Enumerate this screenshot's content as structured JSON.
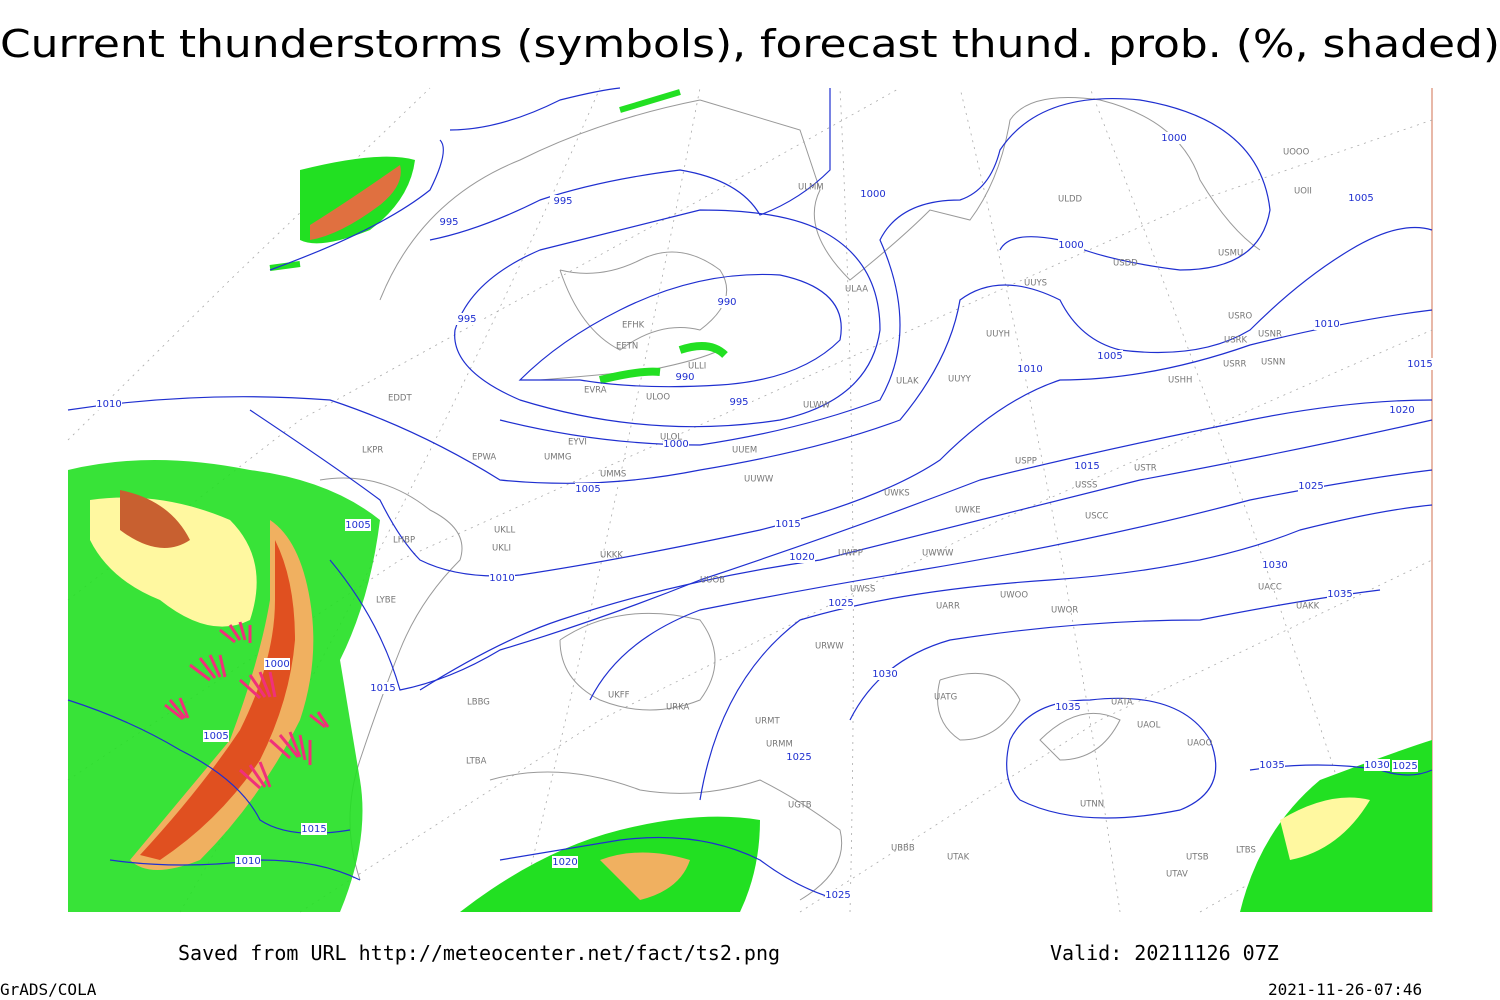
{
  "header": {
    "title": "Current thunderstorms (symbols), forecast thund. prob. (%, shaded)"
  },
  "footer": {
    "source": "Saved from URL http://meteocenter.net/fact/ts2.png",
    "valid": "Valid: 20211126 07Z",
    "software": "GrADS/COLA",
    "timestamp": "2021-11-26-07:46"
  },
  "isobar_labels": [
    "995",
    "995",
    "995",
    "990",
    "990",
    "995",
    "1000",
    "1000",
    "1000",
    "1005",
    "1000",
    "1005",
    "1005",
    "1010",
    "1010",
    "1015",
    "1020",
    "1010",
    "1005",
    "1010",
    "1015",
    "1015",
    "1020",
    "1025",
    "1025",
    "1030",
    "1035",
    "1030",
    "1035",
    "1000",
    "1015",
    "1005",
    "1015",
    "1010",
    "1020",
    "1025",
    "1025",
    "1035",
    "1030",
    "1025"
  ],
  "stations": [
    "ULMM",
    "ULDD",
    "USDD",
    "USMU",
    "UOOO",
    "UOII",
    "ULAA",
    "EFHK",
    "EETN",
    "ULLI",
    "EVRA",
    "ULOO",
    "ULWW",
    "ULAK",
    "UUYY",
    "UUYH",
    "UUYS",
    "USRO",
    "USRK",
    "USNR",
    "USRR",
    "USNN",
    "USHH",
    "EDDT",
    "ULOL",
    "EYVI",
    "UMMG",
    "UUEM",
    "LKPR",
    "EPWA",
    "UMMS",
    "UUWW",
    "USPP",
    "USTR",
    "USSS",
    "UWKS",
    "UWKE",
    "USCC",
    "UKLL",
    "UKLI",
    "LHBP",
    "LYBE",
    "UKKK",
    "UUOB",
    "UWPP",
    "UWWW",
    "UWSS",
    "UARR",
    "UWOO",
    "UWOR",
    "UACC",
    "UAKK",
    "UATG",
    "UATA",
    "UAOL",
    "UAOO",
    "UTNN",
    "URWW",
    "URMT",
    "URMM",
    "UGTB",
    "UBBB",
    "UTAK",
    "LTBA",
    "LBBG",
    "URKA",
    "UKFF",
    "LTBS",
    "UTSB",
    "UTAV"
  ]
}
